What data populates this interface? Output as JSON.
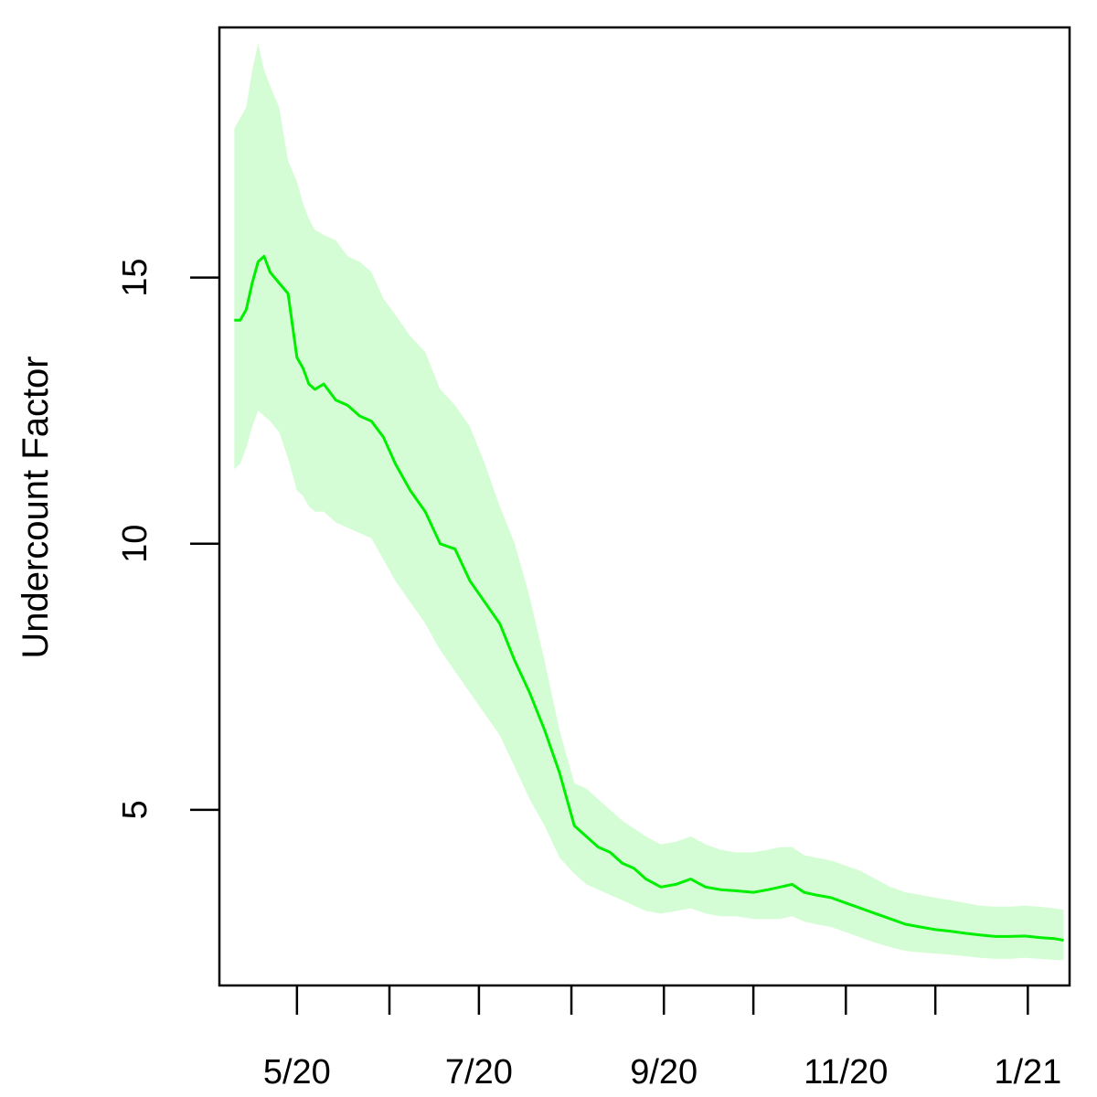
{
  "chart_data": {
    "type": "line",
    "title": "",
    "xlabel": "",
    "ylabel": "Undercount Factor",
    "x_axis": {
      "type": "date",
      "range": [
        "2020-04-05",
        "2021-01-15"
      ],
      "ticks": [
        "2020-05-01",
        "2020-06-01",
        "2020-07-01",
        "2020-08-01",
        "2020-09-01",
        "2020-10-01",
        "2020-11-01",
        "2020-12-01",
        "2021-01-01"
      ],
      "tick_labels": [
        "5/20",
        "",
        "7/20",
        "",
        "9/20",
        "",
        "11/20",
        "",
        "1/21"
      ]
    },
    "y_axis": {
      "range": [
        1.7,
        19.7
      ],
      "ticks": [
        5,
        10,
        15
      ],
      "tick_labels": [
        "5",
        "10",
        "15"
      ]
    },
    "grid": false,
    "legend": "none",
    "colors": {
      "line": "#00ee00",
      "band": "#d5fdd5",
      "axis": "#000000"
    },
    "series": [
      {
        "x": [
          "2020-04-10",
          "2020-04-12",
          "2020-04-14",
          "2020-04-16",
          "2020-04-18",
          "2020-04-20",
          "2020-04-22",
          "2020-04-25",
          "2020-04-28",
          "2020-05-01",
          "2020-05-03",
          "2020-05-05",
          "2020-05-07",
          "2020-05-10",
          "2020-05-14",
          "2020-05-18",
          "2020-05-22",
          "2020-05-26",
          "2020-05-30",
          "2020-06-03",
          "2020-06-08",
          "2020-06-13",
          "2020-06-18",
          "2020-06-23",
          "2020-06-28",
          "2020-07-03",
          "2020-07-08",
          "2020-07-13",
          "2020-07-18",
          "2020-07-23",
          "2020-07-28",
          "2020-08-02",
          "2020-08-06",
          "2020-08-10",
          "2020-08-14",
          "2020-08-18",
          "2020-08-22",
          "2020-08-26",
          "2020-08-31",
          "2020-09-05",
          "2020-09-10",
          "2020-09-15",
          "2020-09-20",
          "2020-09-25",
          "2020-10-01",
          "2020-10-06",
          "2020-10-10",
          "2020-10-14",
          "2020-10-18",
          "2020-10-22",
          "2020-10-27",
          "2020-11-01",
          "2020-11-06",
          "2020-11-11",
          "2020-11-16",
          "2020-11-21",
          "2020-11-26",
          "2020-12-01",
          "2020-12-06",
          "2020-12-11",
          "2020-12-16",
          "2020-12-21",
          "2020-12-26",
          "2020-12-31",
          "2021-01-05",
          "2021-01-10",
          "2021-01-13"
        ],
        "y": [
          14.2,
          14.2,
          14.4,
          14.9,
          15.3,
          15.4,
          15.1,
          14.9,
          14.7,
          13.5,
          13.3,
          13.0,
          12.9,
          13.0,
          12.7,
          12.6,
          12.4,
          12.3,
          12.0,
          11.5,
          11.0,
          10.6,
          10.0,
          9.9,
          9.3,
          8.9,
          8.5,
          7.8,
          7.2,
          6.5,
          5.7,
          4.7,
          4.5,
          4.3,
          4.2,
          4.0,
          3.9,
          3.7,
          3.55,
          3.6,
          3.7,
          3.55,
          3.5,
          3.48,
          3.45,
          3.5,
          3.55,
          3.6,
          3.45,
          3.4,
          3.35,
          3.25,
          3.15,
          3.05,
          2.95,
          2.85,
          2.8,
          2.75,
          2.72,
          2.68,
          2.65,
          2.62,
          2.62,
          2.63,
          2.6,
          2.58,
          2.55
        ],
        "lower": [
          11.4,
          11.5,
          11.8,
          12.2,
          12.5,
          12.4,
          12.3,
          12.1,
          11.6,
          11.0,
          10.9,
          10.7,
          10.6,
          10.6,
          10.4,
          10.3,
          10.2,
          10.1,
          9.7,
          9.3,
          8.9,
          8.5,
          8.0,
          7.6,
          7.2,
          6.8,
          6.4,
          5.8,
          5.2,
          4.7,
          4.1,
          3.8,
          3.6,
          3.5,
          3.4,
          3.3,
          3.2,
          3.1,
          3.05,
          3.1,
          3.15,
          3.05,
          3.0,
          3.0,
          2.95,
          2.95,
          2.95,
          3.0,
          2.9,
          2.85,
          2.8,
          2.7,
          2.6,
          2.5,
          2.42,
          2.35,
          2.32,
          2.3,
          2.28,
          2.25,
          2.22,
          2.2,
          2.2,
          2.22,
          2.2,
          2.18,
          2.18
        ],
        "upper": [
          17.8,
          18.0,
          18.2,
          18.9,
          19.4,
          18.9,
          18.6,
          18.2,
          17.2,
          16.8,
          16.4,
          16.1,
          15.9,
          15.8,
          15.7,
          15.4,
          15.3,
          15.1,
          14.6,
          14.3,
          13.9,
          13.6,
          12.9,
          12.6,
          12.2,
          11.5,
          10.7,
          10.0,
          9.0,
          7.8,
          6.5,
          5.5,
          5.4,
          5.2,
          5.0,
          4.8,
          4.65,
          4.5,
          4.35,
          4.4,
          4.5,
          4.35,
          4.25,
          4.2,
          4.2,
          4.25,
          4.3,
          4.3,
          4.15,
          4.1,
          4.05,
          3.95,
          3.85,
          3.7,
          3.55,
          3.45,
          3.4,
          3.35,
          3.3,
          3.25,
          3.2,
          3.18,
          3.18,
          3.2,
          3.18,
          3.15,
          3.12
        ]
      }
    ]
  }
}
